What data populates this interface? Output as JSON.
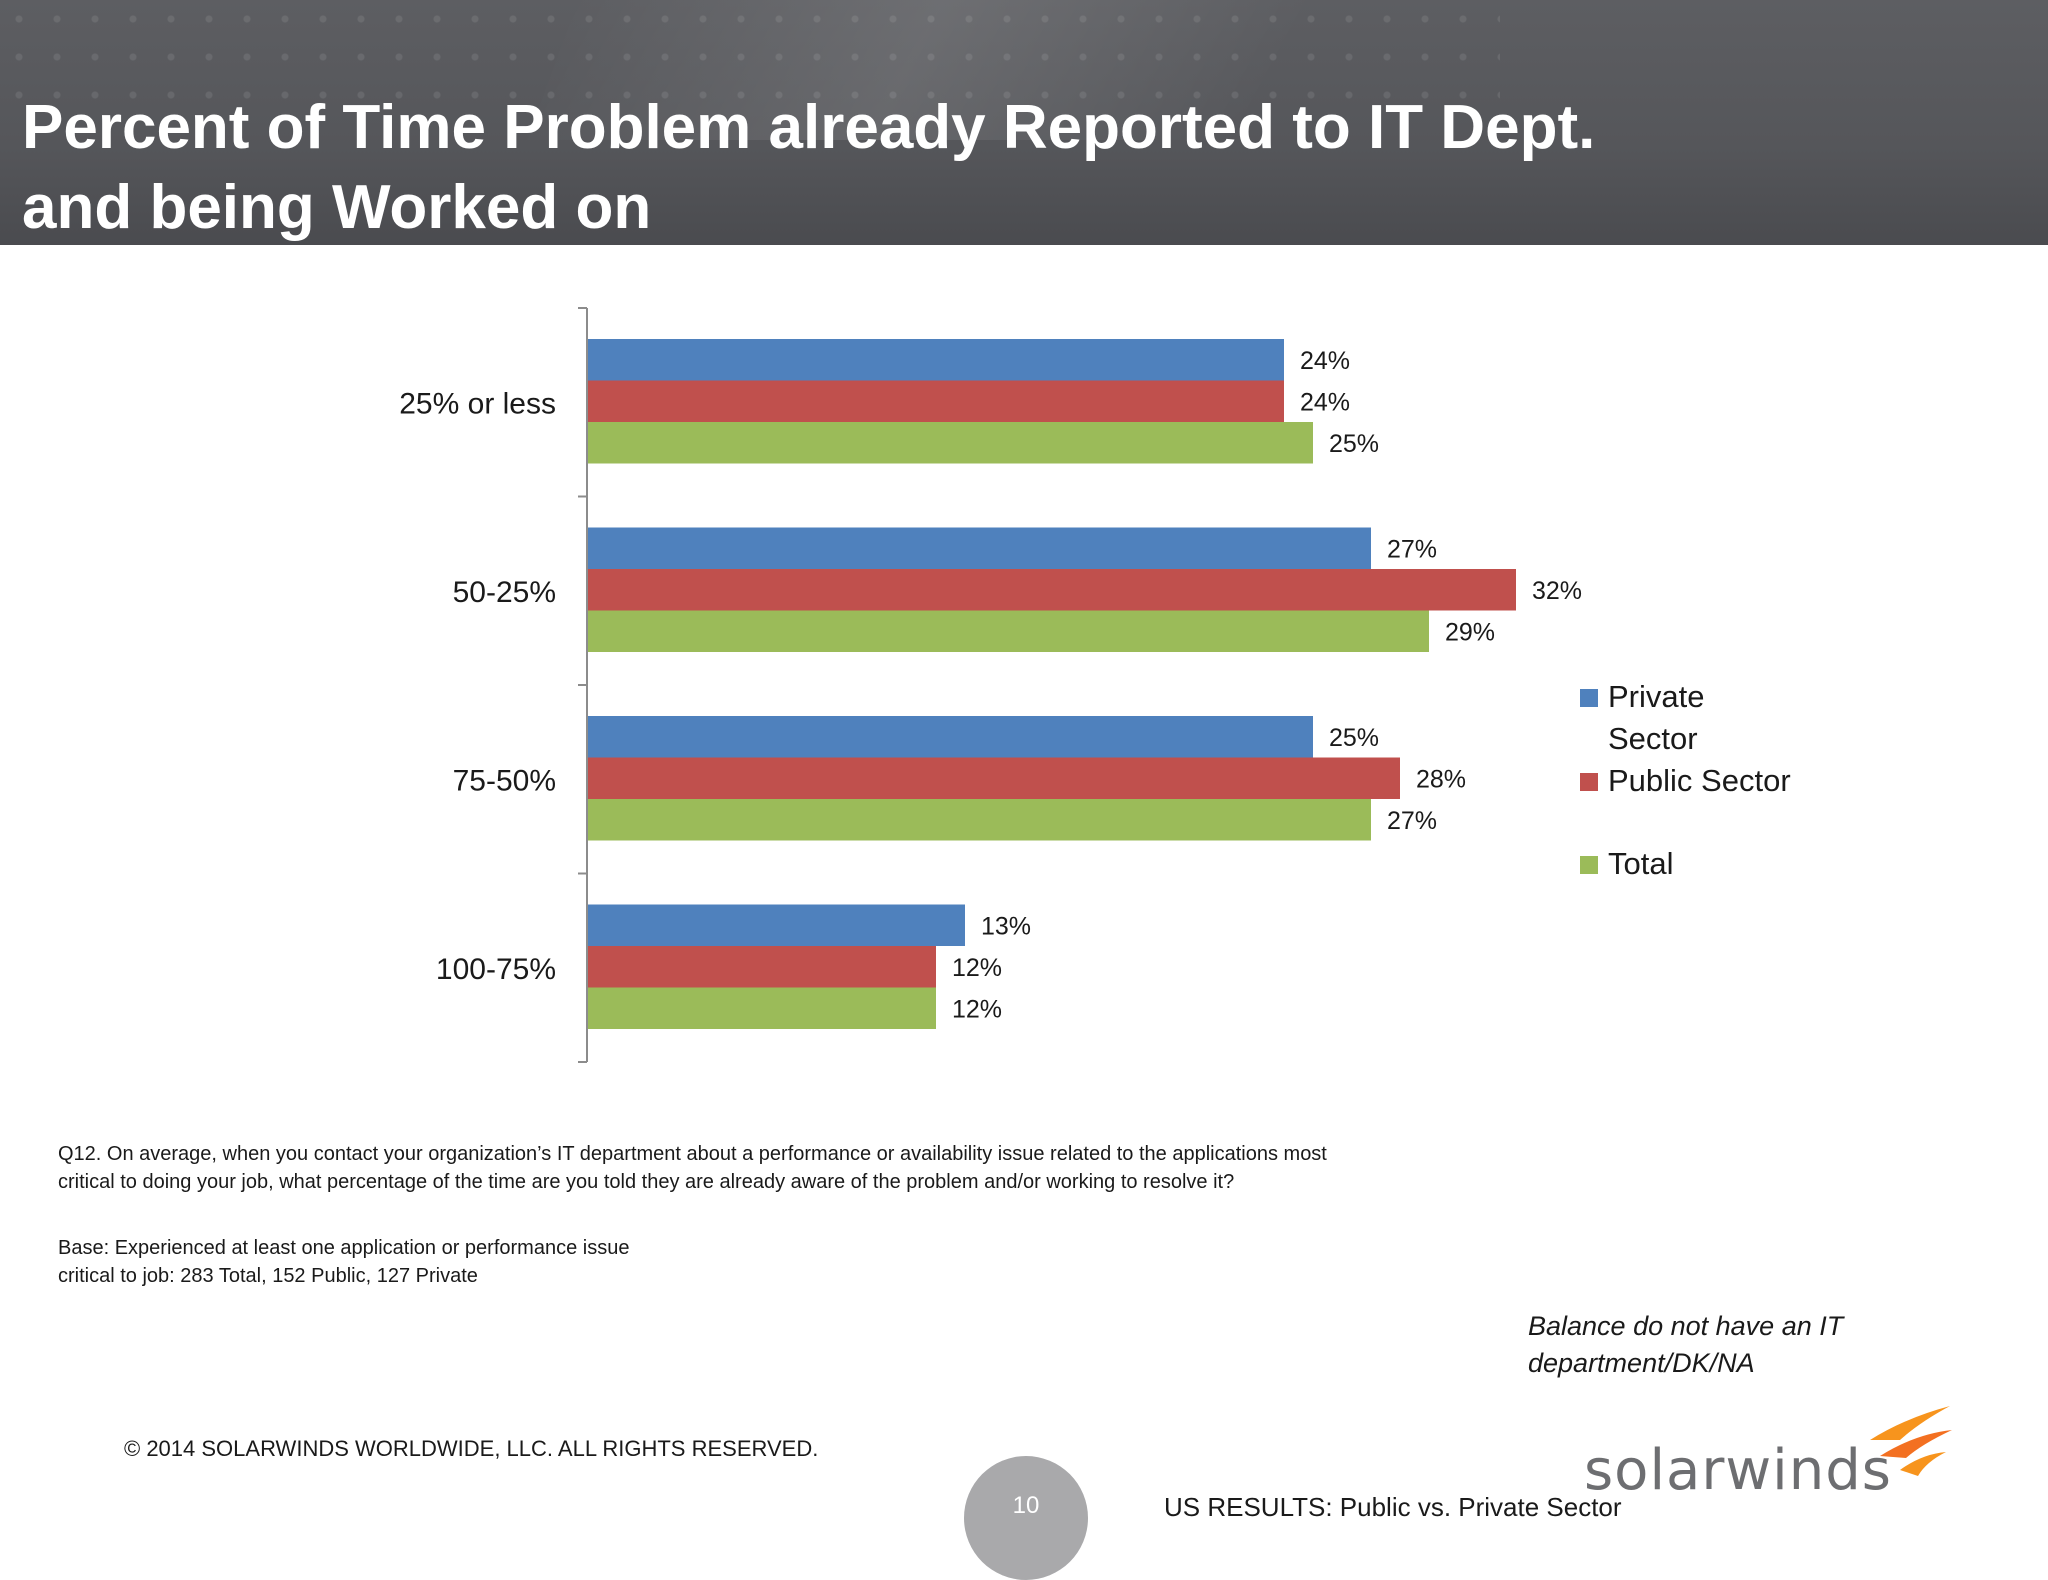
{
  "title": {
    "line1": "Percent of Time Problem already Reported to IT Dept.",
    "line2": "and being Worked on"
  },
  "colors": {
    "private": "#4f81bd",
    "public": "#c0504d",
    "total": "#9bbb59",
    "header": "#58595d"
  },
  "chart_data": {
    "type": "bar",
    "orientation": "horizontal",
    "title": "",
    "xlabel": "",
    "ylabel": "",
    "categories": [
      "25% or less",
      "50-25%",
      "75-50%",
      "100-75%"
    ],
    "series": [
      {
        "name": "Private Sector",
        "color": "#4f81bd",
        "values": [
          24,
          27,
          25,
          13
        ],
        "labels": [
          "24%",
          "27%",
          "25%",
          "13%"
        ]
      },
      {
        "name": "Public Sector",
        "color": "#c0504d",
        "values": [
          24,
          32,
          28,
          12
        ],
        "labels": [
          "24%",
          "32%",
          "28%",
          "12%"
        ]
      },
      {
        "name": "Total",
        "color": "#9bbb59",
        "values": [
          25,
          29,
          27,
          12
        ],
        "labels": [
          "25%",
          "29%",
          "27%",
          "12%"
        ]
      }
    ],
    "xlim": [
      0,
      40
    ],
    "grid": false,
    "legend_position": "right"
  },
  "legend": {
    "private_line1": "Private",
    "private_line2": "Sector",
    "public": "Public Sector",
    "total": "Total"
  },
  "notes": {
    "question_line1": "Q12. On average, when you contact your organization’s IT department about a performance or availability issue related to the applications most",
    "question_line2": "critical to doing your job, what percentage of the time are you told they are already aware of the problem and/or working to resolve it?",
    "base_line1": "Base:  Experienced at least one  application or performance issue",
    "base_line2": "critical to job:  283 Total, 152 Public, 127 Private"
  },
  "balance": {
    "line1": "Balance do not have an IT",
    "line2": "department/DK/NA"
  },
  "footer": {
    "copyright": "© 2014 SOLARWINDS WORLDWIDE, LLC.  ALL RIGHTS RESERVED.",
    "page_number": "10",
    "results_label": "US RESULTS:  Public vs. Private Sector",
    "logo_text": "solarwinds"
  }
}
